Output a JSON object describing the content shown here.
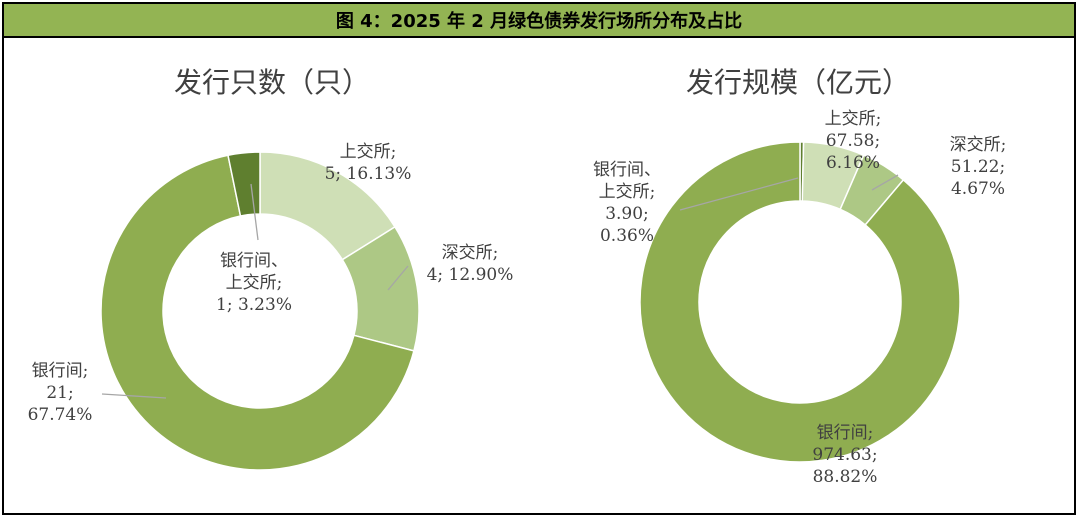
{
  "figure": {
    "title": "图 4：2025 年 2 月绿色债券发行场所分布及占比"
  },
  "colors": {
    "title_bg": "#93b453",
    "inter_bank": "#8fad50",
    "shanghai": "#cfdfb6",
    "shenzhen": "#adc885",
    "inter_bank_shanghai": "#5f7f2f",
    "leader": "#a6a6a6",
    "label_text": "#404040"
  },
  "chart_data": [
    {
      "type": "pie",
      "donut": true,
      "title": "发行只数（只）",
      "categories": [
        "上交所",
        "深交所",
        "银行间",
        "银行间、上交所"
      ],
      "values": [
        5,
        4,
        21,
        1
      ],
      "percents": [
        "16.13%",
        "12.90%",
        "67.74%",
        "3.23%"
      ],
      "labels": [
        [
          "上交所;",
          "5; 16.13%"
        ],
        [
          "深交所;",
          "4; 12.90%"
        ],
        [
          "银行间;",
          "21;",
          "67.74%"
        ],
        [
          "银行间、",
          "上交所;",
          "1; 3.23%"
        ]
      ]
    },
    {
      "type": "pie",
      "donut": true,
      "title": "发行规模（亿元）",
      "categories": [
        "银行间、上交所",
        "上交所",
        "深交所",
        "银行间"
      ],
      "values": [
        3.9,
        67.58,
        51.22,
        974.63
      ],
      "percents": [
        "0.36%",
        "6.16%",
        "4.67%",
        "88.82%"
      ],
      "labels": [
        [
          "银行间、",
          "上交所;",
          "3.90;",
          "0.36%"
        ],
        [
          "上交所;",
          "67.58;",
          "6.16%"
        ],
        [
          "深交所;",
          "51.22;",
          "4.67%"
        ],
        [
          "银行间;",
          "974.63;",
          "88.82%"
        ]
      ]
    }
  ]
}
